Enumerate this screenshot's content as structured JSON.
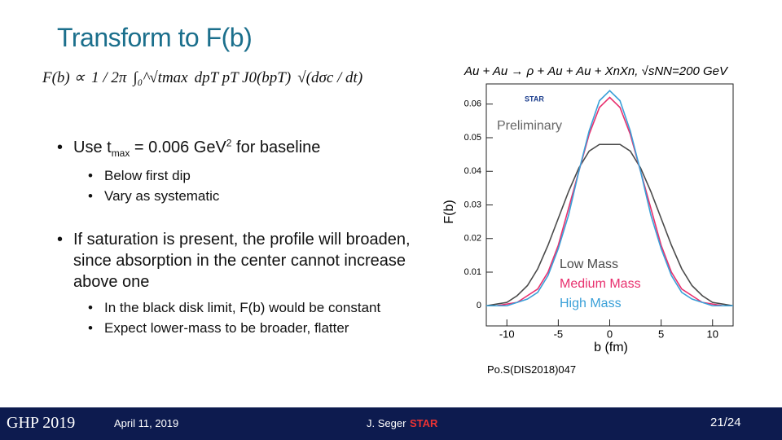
{
  "slide": {
    "title": "Transform to F(b)",
    "formula": {
      "lhs": "F(b) ∝",
      "frac": "1 / 2π",
      "integral": "∫₀^√tmax",
      "body": "dpT pT J0(bpT)",
      "root": "√(dσc / dt)"
    },
    "bullets": [
      {
        "parts": [
          "Use t",
          "max",
          " = 0.006 GeV",
          "2",
          " for baseline"
        ],
        "sub": [
          "Below first dip",
          "Vary as systematic"
        ]
      },
      {
        "parts": [
          "If saturation is present, the profile will broaden, since absorption in the center cannot increase above one"
        ],
        "sub": [
          "In the black disk limit, F(b) would be constant",
          "Expect lower-mass to be broader, flatter"
        ]
      }
    ],
    "citation": "Po.S(DIS2018)047",
    "footer": {
      "conference": "GHP 2019",
      "date": "April 11, 2019",
      "author": "J. Seger",
      "logo": "STAR",
      "page": "21/24"
    }
  },
  "chart_data": {
    "type": "line",
    "title": "Au + Au → ρ + Au + Au + XnXn,  √sNN=200 GeV",
    "annotation": "Preliminary",
    "logo": "STAR",
    "x_label": "b (fm)",
    "y_label": "F(b)",
    "x": [
      -12,
      -11,
      -10,
      -9,
      -8,
      -7,
      -6,
      -5,
      -4,
      -3,
      -2,
      -1,
      0,
      1,
      2,
      3,
      4,
      5,
      6,
      7,
      8,
      9,
      10,
      11,
      12
    ],
    "series": [
      {
        "name": "Low Mass",
        "color": "#4a4a4a",
        "values": [
          0,
          0.0005,
          0.001,
          0.003,
          0.006,
          0.011,
          0.018,
          0.026,
          0.034,
          0.041,
          0.046,
          0.048,
          0.048,
          0.048,
          0.046,
          0.041,
          0.034,
          0.026,
          0.018,
          0.011,
          0.006,
          0.003,
          0.001,
          0.0005,
          0
        ]
      },
      {
        "name": "Medium Mass",
        "color": "#e8306e",
        "values": [
          0,
          0,
          0.0005,
          0.001,
          0.003,
          0.005,
          0.01,
          0.018,
          0.029,
          0.04,
          0.051,
          0.059,
          0.062,
          0.059,
          0.051,
          0.04,
          0.029,
          0.018,
          0.01,
          0.005,
          0.003,
          0.001,
          0.0005,
          0,
          0
        ]
      },
      {
        "name": "High Mass",
        "color": "#3aa0d8",
        "values": [
          0,
          0,
          0,
          0.001,
          0.002,
          0.004,
          0.009,
          0.017,
          0.027,
          0.04,
          0.052,
          0.061,
          0.064,
          0.061,
          0.052,
          0.04,
          0.027,
          0.017,
          0.009,
          0.004,
          0.002,
          0.001,
          0,
          0,
          0
        ]
      }
    ],
    "xlim": [
      -12,
      12
    ],
    "xticks": [
      -10,
      -5,
      0,
      5,
      10
    ],
    "ylim": [
      -0.006,
      0.066
    ],
    "yticks": [
      0,
      0.01,
      0.02,
      0.03,
      0.04,
      0.05,
      0.06
    ],
    "legend": "lower right"
  }
}
